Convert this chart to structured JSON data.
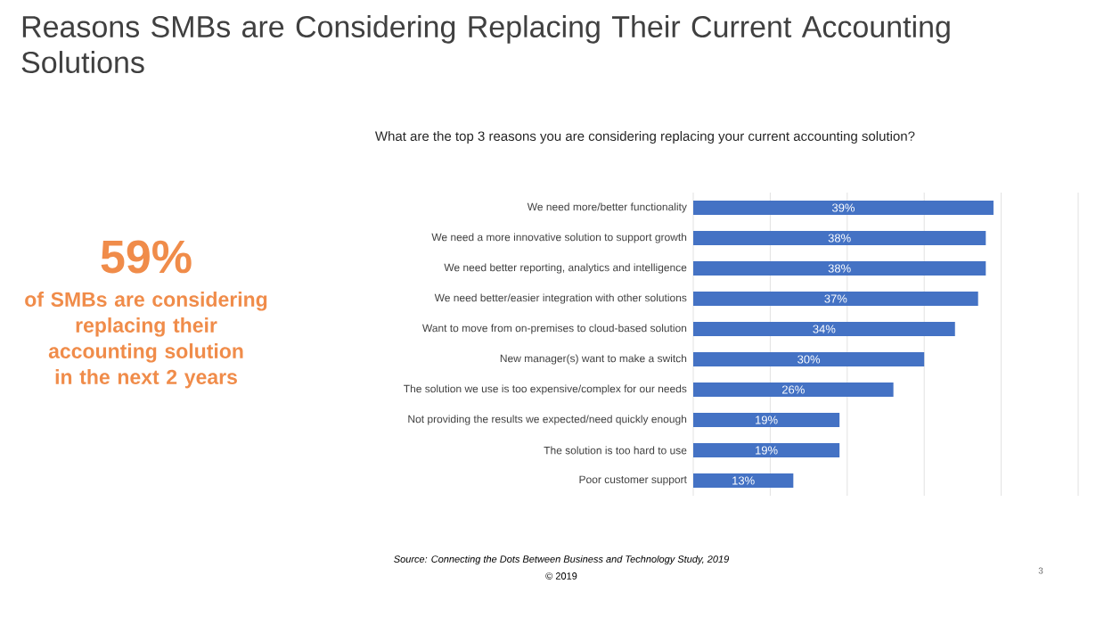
{
  "chart_data": {
    "type": "bar",
    "orientation": "horizontal",
    "title": "Reasons SMBs are Considering Replacing Their Current Accounting Solutions",
    "subtitle": "What are the top 3 reasons you are considering replacing your current accounting solution?",
    "categories": [
      "We need more/better functionality",
      "We need a more innovative solution to support growth",
      "We need better reporting, analytics and intelligence",
      "We need better/easier integration with other solutions",
      "Want to move from on-premises to cloud-based solution",
      "New manager(s) want to make a switch",
      "The solution we use is too expensive/complex for our needs",
      "Not providing the results we expected/need quickly enough",
      "The solution is too hard to use",
      "Poor customer support"
    ],
    "values": [
      39,
      38,
      38,
      37,
      34,
      30,
      26,
      19,
      19,
      13
    ],
    "value_labels": [
      "39%",
      "38%",
      "38%",
      "37%",
      "34%",
      "30%",
      "26%",
      "19%",
      "19%",
      "13%"
    ],
    "color": "#4472c4",
    "xlim": [
      0,
      50
    ],
    "xticks": [
      {
        "value": 0,
        "label": null
      },
      {
        "value": 10,
        "label": null
      },
      {
        "value": 20,
        "label": null
      },
      {
        "value": 30,
        "label": null
      },
      {
        "value": 40,
        "label": null
      },
      {
        "value": 50,
        "label": null
      }
    ],
    "grid": "x",
    "tick_labels": "y",
    "annotations": [
      "59%",
      "of SMBs are considering replacing their accounting solution in the next 2 years",
      "Source: Connecting the Dots Between Business and Technology Study, 2019",
      "© 2019",
      "3"
    ]
  }
}
